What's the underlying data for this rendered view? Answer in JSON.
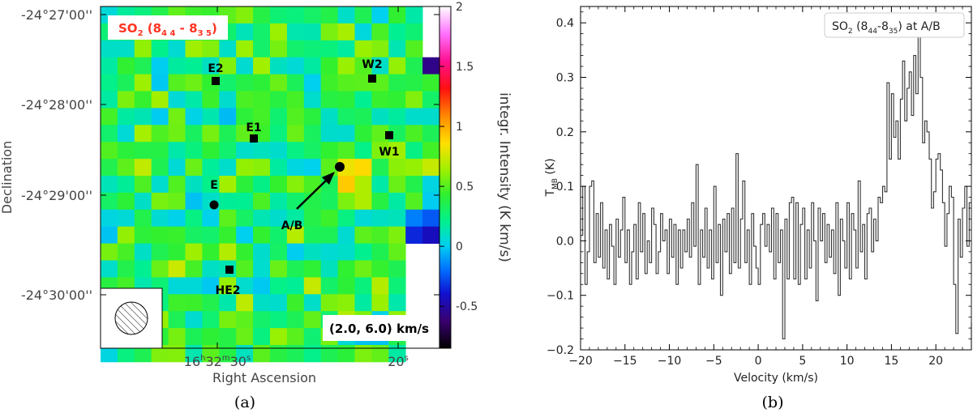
{
  "panels": [
    {
      "caption": "(a)",
      "chart_data": {
        "type": "heatmap",
        "title": "SO2 (8 4 4 - 8 3 5)",
        "title_parts": {
          "main": "SO",
          "sub1": "2",
          "pre": " (8",
          "sub2": "4 4",
          "mid": " - 8",
          "sub3": "3 5",
          "post": ")"
        },
        "xlabel": "Right Ascension",
        "ylabel": "Declination",
        "x_ticks": [
          {
            "label_h": "16",
            "label_m": "32",
            "label_s": "30",
            "compound": true
          },
          {
            "label": "20",
            "sup": "s",
            "compound": false
          }
        ],
        "y_ticks": [
          "-24°27'00''",
          "-24°28'00''",
          "-24°29'00''",
          "-24°30'00''"
        ],
        "colorbar": {
          "label": "integr. Intensity (K km/s)",
          "range": [
            -0.85,
            2.0
          ],
          "ticks": [
            "2",
            "1.5",
            "1",
            "0.5",
            "0",
            "-0.5"
          ],
          "tick_values": [
            2,
            1.5,
            1,
            0.5,
            0,
            -0.5
          ]
        },
        "velocity_range_label": "(2.0, 6.0) km/s",
        "sources": [
          {
            "name": "E2",
            "marker": "square"
          },
          {
            "name": "W2",
            "marker": "square"
          },
          {
            "name": "E1",
            "marker": "square"
          },
          {
            "name": "W1",
            "marker": "square"
          },
          {
            "name": "E",
            "marker": "circle"
          },
          {
            "name": "A/B",
            "marker": "circle"
          },
          {
            "name": "HE2",
            "marker": "square"
          }
        ],
        "peak": {
          "source": "A/B",
          "value": 1.2
        },
        "colors": {
          "title": "#ff3322",
          "markers": "#000000"
        }
      }
    },
    {
      "caption": "(b)",
      "chart_data": {
        "type": "line",
        "step": true,
        "legend": {
          "text_main": "SO",
          "sub1": "2",
          "pre": " (8",
          "sub2": "44",
          "mid": "-8",
          "sub3": "35",
          "post": ") at A/B",
          "position": "top-right"
        },
        "xlabel": "Velocity (km/s)",
        "ylabel_main": "T",
        "ylabel_sub": "MB",
        "ylabel_unit": " (K)",
        "xlim": [
          -20,
          24
        ],
        "ylim": [
          -0.2,
          0.43
        ],
        "x_ticks": [
          -20,
          -15,
          -10,
          -5,
          0,
          5,
          10,
          15,
          20
        ],
        "x_tick_labels": [
          "−20",
          "−15",
          "−10",
          "−5",
          "0",
          "5",
          "10",
          "15",
          "20"
        ],
        "y_ticks": [
          -0.2,
          -0.1,
          0.0,
          0.1,
          0.2,
          0.3,
          0.4
        ],
        "y_tick_labels": [
          "−0.2",
          "−0.1",
          "0.0",
          "0.1",
          "0.2",
          "0.3",
          "0.4"
        ],
        "series": [
          {
            "x_start": -20.0,
            "x_step": 0.25,
            "values": [
              0.01,
              0.1,
              -0.08,
              -0.02,
              0.1,
              0.11,
              -0.04,
              0.05,
              -0.03,
              0.07,
              -0.05,
              0.02,
              -0.07,
              0.03,
              -0.01,
              -0.08,
              0.04,
              -0.03,
              0.02,
              0.08,
              -0.04,
              0.02,
              -0.08,
              -0.02,
              0.03,
              -0.07,
              0.07,
              -0.02,
              0.05,
              -0.06,
              0.0,
              -0.04,
              0.06,
              0.03,
              -0.06,
              -0.02,
              0.05,
              0.0,
              0.02,
              -0.06,
              0.04,
              -0.03,
              0.03,
              -0.08,
              0.02,
              -0.05,
              0.02,
              -0.02,
              0.04,
              -0.03,
              0.07,
              -0.01,
              0.14,
              -0.08,
              0.02,
              -0.03,
              0.06,
              -0.05,
              0.02,
              -0.07,
              0.1,
              -0.04,
              0.03,
              -0.1,
              0.04,
              -0.02,
              0.05,
              -0.06,
              0.06,
              -0.04,
              0.16,
              -0.05,
              0.04,
              0.11,
              -0.04,
              0.02,
              -0.08,
              0.05,
              -0.01,
              -0.05,
              -0.08,
              0.03,
              0.05,
              -0.01,
              0.03,
              -0.02,
              0.06,
              -0.07,
              0.05,
              -0.04,
              0.02,
              -0.18,
              0.04,
              -0.07,
              0.07,
              0.08,
              -0.07,
              0.07,
              -0.08,
              0.03,
              0.06,
              -0.07,
              0.02,
              -0.05,
              0.07,
              0.0,
              -0.11,
              0.06,
              0.0,
              0.05,
              -0.04,
              0.03,
              -0.03,
              0.02,
              -0.06,
              0.07,
              -0.1,
              0.04,
              0.0,
              -0.05,
              0.07,
              -0.07,
              0.05,
              0.02,
              -0.05,
              0.11,
              -0.02,
              0.03,
              -0.07,
              0.05,
              0.06,
              -0.02,
              0.04,
              0.0,
              0.08,
              0.07,
              0.1,
              0.09,
              0.29,
              0.15,
              0.27,
              0.19,
              0.22,
              0.15,
              0.26,
              0.33,
              0.22,
              0.28,
              0.31,
              0.23,
              0.34,
              0.27,
              0.39,
              0.3,
              0.18,
              0.22,
              0.2,
              0.15,
              0.06,
              0.09,
              0.15,
              0.16,
              0.13,
              0.07,
              -0.01,
              0.05,
              0.1,
              0.08,
              -0.08,
              -0.17,
              0.04,
              -0.03,
              0.06,
              0.1,
              -0.01,
              0.07,
              0.02,
              -0.04,
              0.05,
              0.06,
              0.03,
              -0.01,
              0.06,
              -0.03,
              0.1,
              0.02,
              -0.02,
              0.06,
              0.03,
              0.07,
              -0.03,
              0.05,
              0.0,
              0.04,
              0.09,
              -0.04,
              0.07,
              -0.05,
              0.04,
              0.12,
              -0.07,
              0.06,
              0.01,
              0.05,
              -0.06,
              0.03,
              -0.02,
              0.07,
              -0.06,
              0.11,
              0.02,
              -0.04,
              -0.08,
              0.07,
              0.02,
              -0.03,
              0.03,
              0.07,
              -0.02,
              -0.02,
              0.12,
              -0.07,
              0.02,
              0.08,
              0.14,
              -0.03,
              0.04,
              -0.01,
              0.06,
              -0.07,
              0.1,
              -0.01,
              0.12,
              -0.02,
              0.07,
              0.03,
              -0.07,
              -0.15,
              0.08,
              -0.03,
              0.05,
              0.0,
              0.13,
              -0.02,
              0.05,
              -0.09,
              0.13,
              0.04,
              -0.11,
              0.14,
              0.01,
              -0.06,
              0.06,
              0.02
            ]
          }
        ]
      }
    }
  ]
}
